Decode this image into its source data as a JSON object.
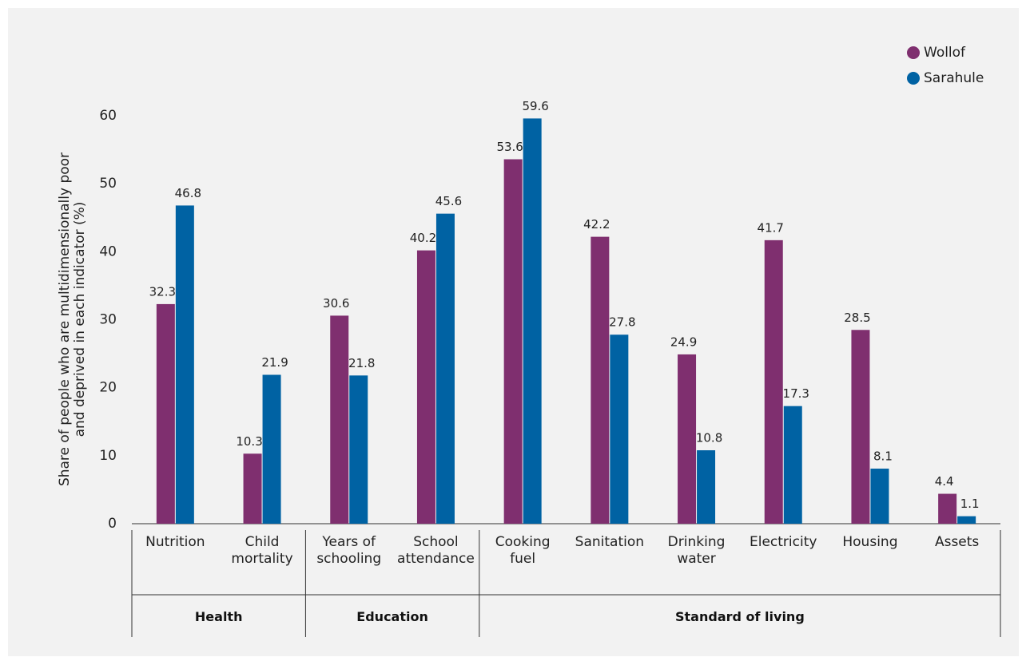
{
  "chart_data": {
    "type": "bar",
    "y_label": "Share of people who are multidimensionally poor\nand deprived in each indicator (%)",
    "categories": [
      "Nutrition",
      "Child\nmortality",
      "Years of\nschooling",
      "School\nattendance",
      "Cooking\nfuel",
      "Sanitation",
      "Drinking\nwater",
      "Electricity",
      "Housing",
      "Assets"
    ],
    "groups": [
      {
        "name": "Health",
        "count": 2
      },
      {
        "name": "Education",
        "count": 2
      },
      {
        "name": "Standard of living",
        "count": 6
      }
    ],
    "series": [
      {
        "name": "Wollof",
        "color": "#7f2f6f",
        "values": [
          32.3,
          10.3,
          30.6,
          40.2,
          53.6,
          42.2,
          24.9,
          41.7,
          28.5,
          4.4
        ]
      },
      {
        "name": "Sarahule",
        "color": "#0062a3",
        "values": [
          46.8,
          21.9,
          21.8,
          45.6,
          59.6,
          27.8,
          10.8,
          17.3,
          8.1,
          1.1
        ]
      }
    ],
    "ylim": [
      0,
      60
    ],
    "yticks": [
      0,
      10,
      20,
      30,
      40,
      50,
      60
    ],
    "grid": false,
    "legend": "top-right"
  }
}
